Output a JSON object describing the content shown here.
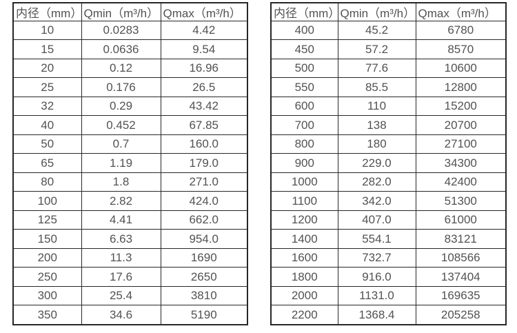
{
  "page": {
    "background": "#ffffff",
    "border_color": "#262626",
    "text_color": "#525252"
  },
  "tables": [
    {
      "name": "flow-table-small-diameters",
      "headers": [
        "内径（mm）",
        "Qmin（m³/h）",
        "Qmax（m³/h）"
      ],
      "rows": [
        [
          "10",
          "0.0283",
          "4.42"
        ],
        [
          "15",
          "0.0636",
          "9.54"
        ],
        [
          "20",
          "0.12",
          "16.96"
        ],
        [
          "25",
          "0.176",
          "26.5"
        ],
        [
          "32",
          "0.29",
          "43.42"
        ],
        [
          "40",
          "0.452",
          "67.85"
        ],
        [
          "50",
          "0.7",
          "160.0"
        ],
        [
          "65",
          "1.19",
          "179.0"
        ],
        [
          "80",
          "1.8",
          "271.0"
        ],
        [
          "100",
          "2.82",
          "424.0"
        ],
        [
          "125",
          "4.41",
          "662.0"
        ],
        [
          "150",
          "6.63",
          "954.0"
        ],
        [
          "200",
          "11.3",
          "1690"
        ],
        [
          "250",
          "17.6",
          "2650"
        ],
        [
          "300",
          "25.4",
          "3810"
        ],
        [
          "350",
          "34.6",
          "5190"
        ]
      ]
    },
    {
      "name": "flow-table-large-diameters",
      "headers": [
        "内径（mm）",
        "Qmin（m³/h）",
        "Qmax（m³/h）"
      ],
      "rows": [
        [
          "400",
          "45.2",
          "6780"
        ],
        [
          "450",
          "57.2",
          "8570"
        ],
        [
          "500",
          "77.6",
          "10600"
        ],
        [
          "550",
          "85.5",
          "12800"
        ],
        [
          "600",
          "110",
          "15200"
        ],
        [
          "700",
          "138",
          "20700"
        ],
        [
          "800",
          "180",
          "27100"
        ],
        [
          "900",
          "229.0",
          "34300"
        ],
        [
          "1000",
          "282.0",
          "42400"
        ],
        [
          "1100",
          "342.0",
          "51300"
        ],
        [
          "1200",
          "407.0",
          "61000"
        ],
        [
          "1400",
          "554.1",
          "83121"
        ],
        [
          "1600",
          "732.7",
          "108566"
        ],
        [
          "1800",
          "916.0",
          "137404"
        ],
        [
          "2000",
          "1131.0",
          "169635"
        ],
        [
          "2200",
          "1368.4",
          "205258"
        ]
      ]
    }
  ]
}
